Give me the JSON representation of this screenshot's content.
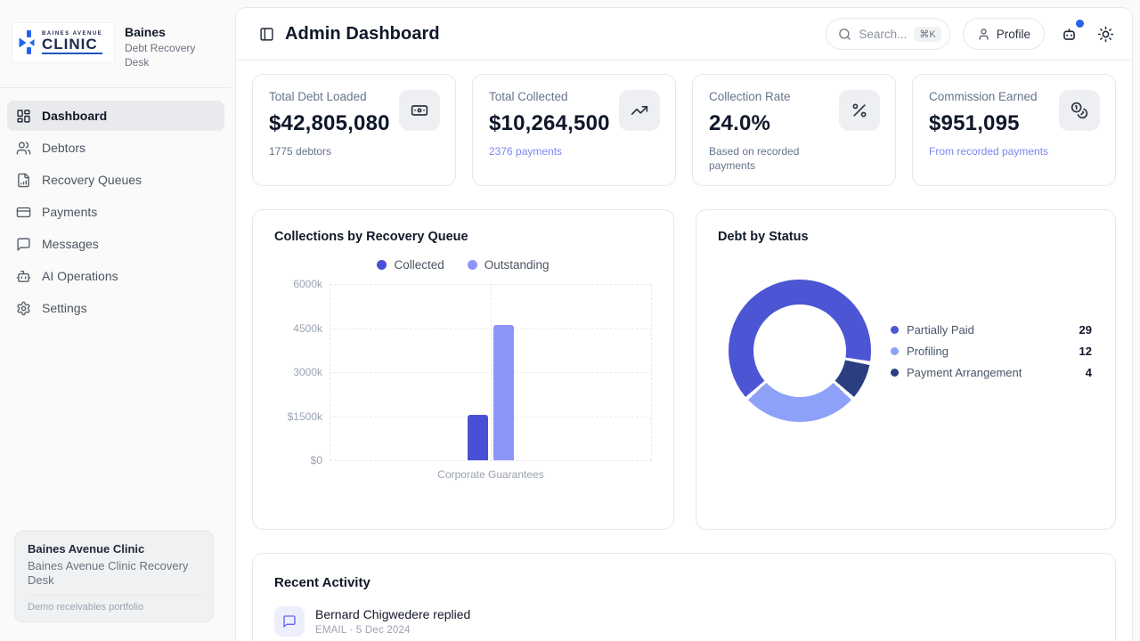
{
  "brand": {
    "logo_line1": "BAINES AVENUE",
    "logo_line2": "CLINIC",
    "app_name": "Baines",
    "app_subtitle": "Debt Recovery Desk"
  },
  "sidebar": {
    "items": [
      {
        "label": "Dashboard",
        "icon": "dashboard-grid-icon",
        "active": true
      },
      {
        "label": "Debtors",
        "icon": "users-icon",
        "active": false
      },
      {
        "label": "Recovery Queues",
        "icon": "file-chart-icon",
        "active": false
      },
      {
        "label": "Payments",
        "icon": "credit-card-icon",
        "active": false
      },
      {
        "label": "Messages",
        "icon": "message-icon",
        "active": false
      },
      {
        "label": "AI Operations",
        "icon": "robot-icon",
        "active": false
      },
      {
        "label": "Settings",
        "icon": "gear-icon",
        "active": false
      }
    ],
    "org_card": {
      "name": "Baines Avenue Clinic",
      "desc": "Baines Avenue Clinic Recovery Desk",
      "note": "Demo receivables portfolio"
    }
  },
  "header": {
    "title": "Admin Dashboard",
    "search_placeholder": "Search...",
    "search_shortcut": "⌘K",
    "profile_label": "Profile",
    "notification_dot_color": "#2563eb"
  },
  "stats": [
    {
      "label": "Total Debt Loaded",
      "value": "$42,805,080",
      "sub": "1775 debtors",
      "icon": "banknote-icon"
    },
    {
      "label": "Total Collected",
      "value": "$10,264,500",
      "sub": "2376 payments",
      "icon": "trending-up-icon"
    },
    {
      "label": "Collection Rate",
      "value": "24.0%",
      "sub": "Based on recorded payments",
      "icon": "percent-icon"
    },
    {
      "label": "Commission Earned",
      "value": "$951,095",
      "sub": "From recorded payments",
      "icon": "coins-icon"
    }
  ],
  "chart_data": [
    {
      "type": "bar",
      "title": "Collections by Recovery Queue",
      "categories": [
        "Corporate Guarantees"
      ],
      "series": [
        {
          "name": "Collected",
          "color": "#4a50d5",
          "values": [
            1560
          ]
        },
        {
          "name": "Outstanding",
          "color": "#8c96f9",
          "values": [
            4620
          ]
        }
      ],
      "unit": "thousands USD",
      "ylim": [
        0,
        6000
      ],
      "yticks_top_to_bottom": [
        "6000k",
        "4500k",
        "3000k",
        "$1500k",
        "$0"
      ],
      "grid": true,
      "legend_position": "top"
    },
    {
      "type": "donut",
      "title": "Debt by Status",
      "segments": [
        {
          "label": "Partially Paid",
          "value": 29,
          "color": "#4c55d4"
        },
        {
          "label": "Profiling",
          "value": 12,
          "color": "#8ea1f8"
        },
        {
          "label": "Payment Arrangement",
          "value": 4,
          "color": "#2b3f80"
        }
      ],
      "start_angle_deg": 100,
      "legend_position": "right"
    }
  ],
  "activity": {
    "title": "Recent Activity",
    "items": [
      {
        "icon": "message-icon",
        "title": "Bernard Chigwedere replied",
        "meta": "EMAIL · 5 Dec 2024"
      }
    ]
  }
}
